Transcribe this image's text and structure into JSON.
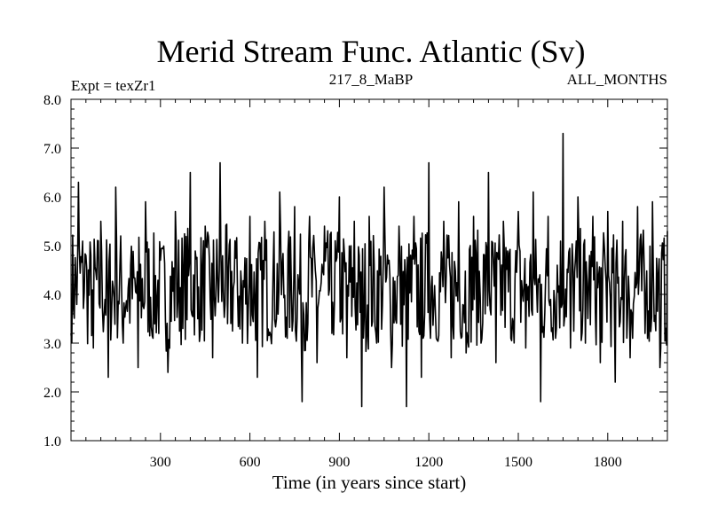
{
  "chart_data": {
    "type": "line",
    "title": "Merid Stream Func. Atlantic (Sv)",
    "subtitle_left": "Expt = texZr1",
    "subtitle_center": "217_8_MaBP",
    "subtitle_right": "ALL_MONTHS",
    "xlabel": "Time (in years since start)",
    "ylabel": "",
    "xlim": [
      0,
      2000
    ],
    "ylim": [
      1.0,
      8.0
    ],
    "xticks": [
      300,
      600,
      900,
      1200,
      1500,
      1800
    ],
    "xtick_labels": [
      "300",
      "600",
      "900",
      "1200",
      "1500",
      "1800"
    ],
    "yticks": [
      1.0,
      2.0,
      3.0,
      4.0,
      5.0,
      6.0,
      7.0,
      8.0
    ],
    "ytick_labels": [
      "1.0",
      "2.0",
      "3.0",
      "4.0",
      "5.0",
      "6.0",
      "7.0",
      "8.0"
    ],
    "grid": false,
    "legend": "none",
    "line_color": "#000000",
    "series": [
      {
        "x": [
          0,
          25,
          50,
          75,
          100,
          125,
          150,
          175,
          200,
          225,
          250,
          275,
          300,
          325,
          350,
          375,
          400,
          425,
          450,
          475,
          500,
          525,
          550,
          575,
          600,
          625,
          650,
          675,
          700,
          725,
          750,
          775,
          800,
          825,
          850,
          875,
          900,
          925,
          950,
          975,
          1000,
          1025,
          1050,
          1075,
          1100,
          1125,
          1150,
          1175,
          1200,
          1225,
          1250,
          1275,
          1300,
          1325,
          1350,
          1375,
          1400,
          1425,
          1450,
          1475,
          1500,
          1525,
          1550,
          1575,
          1600,
          1625,
          1650,
          1675,
          1700,
          1725,
          1750,
          1775,
          1800,
          1825,
          1850,
          1875,
          1900,
          1925,
          1950,
          1975,
          2000
        ],
        "values": [
          3.2,
          6.3,
          4.8,
          2.9,
          5.5,
          2.3,
          6.2,
          3.0,
          4.6,
          2.5,
          5.9,
          3.1,
          4.7,
          2.4,
          5.7,
          3.3,
          6.5,
          3.5,
          5.4,
          2.7,
          6.7,
          3.4,
          5.1,
          3.0,
          5.6,
          2.3,
          5.5,
          3.5,
          6.1,
          3.1,
          5.8,
          1.8,
          5.6,
          2.6,
          5.4,
          3.2,
          6.0,
          2.7,
          5.5,
          1.7,
          5.6,
          3.0,
          6.2,
          2.5,
          5.4,
          1.7,
          5.6,
          2.3,
          6.7,
          3.1,
          5.5,
          2.7,
          5.9,
          2.8,
          5.6,
          3.0,
          6.5,
          2.6,
          5.5,
          3.1,
          5.7,
          2.9,
          6.1,
          1.8,
          5.6,
          3.1,
          7.3,
          2.9,
          6.0,
          3.0,
          5.6,
          2.6,
          5.7,
          2.2,
          5.5,
          2.7,
          5.8,
          3.2,
          5.9,
          2.5,
          5.3
        ]
      }
    ]
  }
}
